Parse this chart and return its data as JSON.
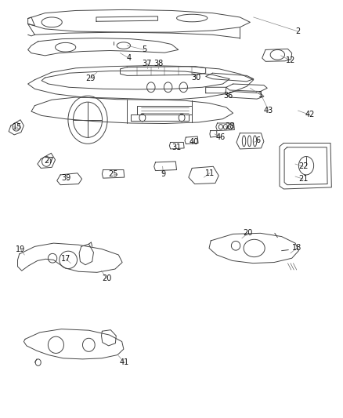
{
  "bg_color": "#ffffff",
  "fig_width": 4.38,
  "fig_height": 5.33,
  "dpi": 100,
  "line_color": "#444444",
  "label_fontsize": 7,
  "label_color": "#111111",
  "gray": "#888888"
}
